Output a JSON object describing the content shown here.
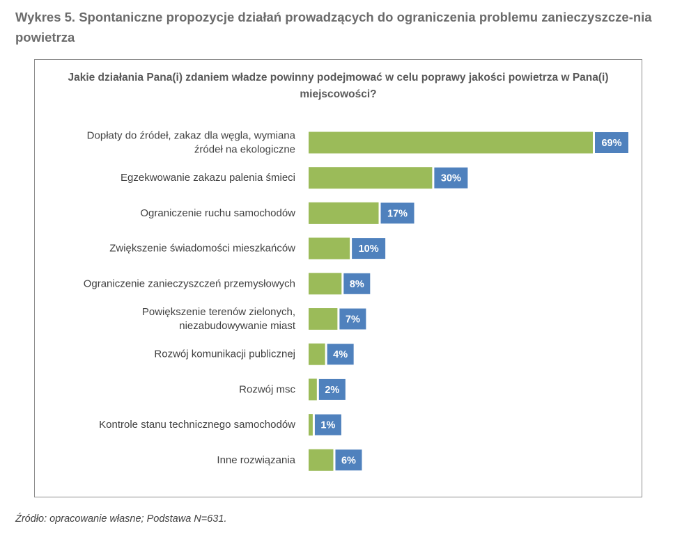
{
  "figure": {
    "title": "Wykres 5. Spontaniczne propozycje działań prowadzących do ograniczenia problemu zanieczyszcze-nia powietrza",
    "source": "Źródło: opracowanie własne; Podstawa N=631."
  },
  "colors": {
    "bar": "#9bbb59",
    "value_label_bg": "#4f81bd",
    "frame": "#8c8c8c",
    "text": "#595959"
  },
  "chart_data": {
    "type": "bar",
    "orientation": "horizontal",
    "title": "Jakie działania Pana(i) zdaniem władze powinny podejmować w celu poprawy jakości powietrza w Pana(i) miejscowości?",
    "categories": [
      [
        "Dopłaty do źródeł, zakaz dla węgla, wymiana",
        "źródeł na ekologiczne"
      ],
      [
        "Egzekwowanie zakazu palenia śmieci"
      ],
      [
        "Ograniczenie ruchu samochodów"
      ],
      [
        "Zwiększenie świadomości mieszkańców"
      ],
      [
        "Ograniczenie zanieczyszczeń przemysłowych"
      ],
      [
        "Powiększenie terenów zielonych,",
        "niezabudowywanie miast"
      ],
      [
        "Rozwój komunikacji publicznej"
      ],
      [
        "Rozwój msc"
      ],
      [
        "Kontrole stanu technicznego samochodów"
      ],
      [
        "Inne rozwiązania"
      ]
    ],
    "values": [
      69,
      30,
      17,
      10,
      8,
      7,
      4,
      2,
      1,
      6
    ],
    "value_labels": [
      "69%",
      "30%",
      "17%",
      "10%",
      "8%",
      "7%",
      "4%",
      "2%",
      "1%",
      "6%"
    ],
    "unit": "%",
    "xlim": [
      0,
      69
    ],
    "grid": false,
    "legend": "none"
  }
}
